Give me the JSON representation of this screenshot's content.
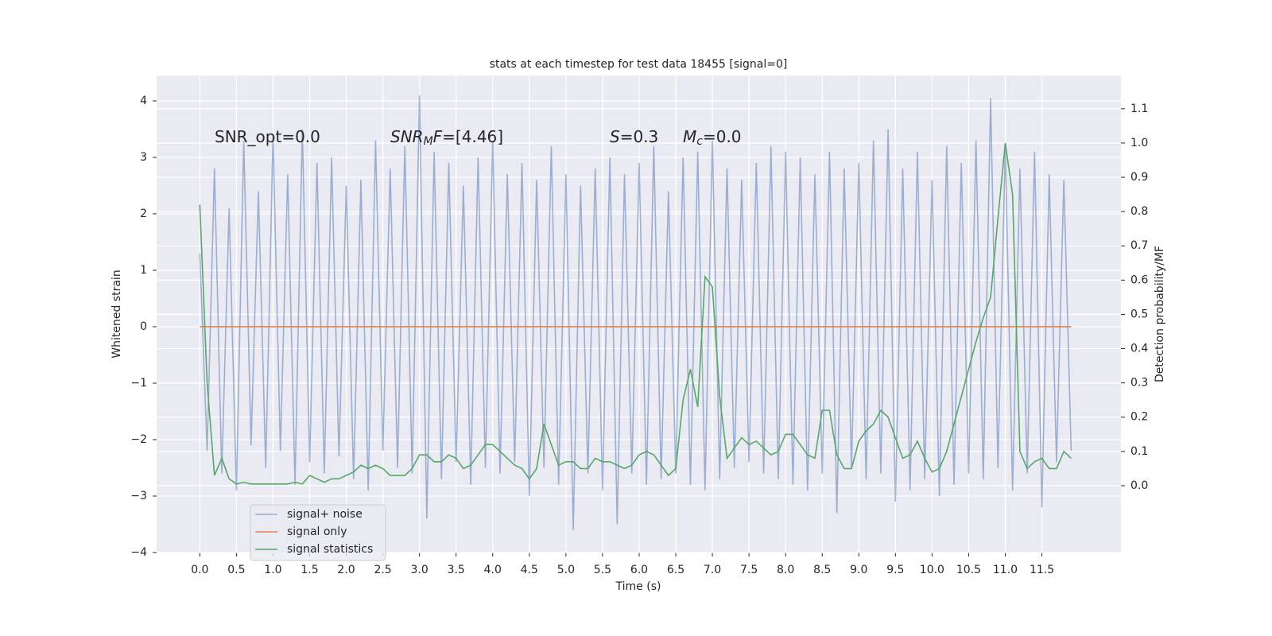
{
  "chart_data": {
    "type": "line",
    "title": "stats at each timestep for test data 18455 [signal=0]",
    "xlabel": "Time (s)",
    "ylabel": "Whitened strain",
    "y2label": "Detection probability/MF",
    "annotations": [
      [
        {
          "text": "SNR_opt=0.0"
        }
      ],
      [
        {
          "text": "SNR",
          "italic": true
        },
        {
          "text": "M",
          "italic": true,
          "sub": true
        },
        {
          "text": "F",
          "italic": true
        },
        {
          "text": "=[4.46]"
        }
      ],
      [
        {
          "text": "S",
          "italic": true
        },
        {
          "text": "=0.3"
        }
      ],
      [
        {
          "text": "M",
          "italic": true
        },
        {
          "text": "c",
          "italic": true,
          "sub": true
        },
        {
          "text": "=0.0"
        }
      ]
    ],
    "x": [
      0,
      0.1,
      0.2,
      0.3,
      0.4,
      0.5,
      0.6,
      0.7,
      0.8,
      0.9,
      1,
      1.1,
      1.2,
      1.3,
      1.4,
      1.5,
      1.6,
      1.7,
      1.8,
      1.9,
      2,
      2.1,
      2.2,
      2.3,
      2.4,
      2.5,
      2.6,
      2.7,
      2.8,
      2.9,
      3,
      3.1,
      3.2,
      3.3,
      3.4,
      3.5,
      3.6,
      3.7,
      3.8,
      3.9,
      4,
      4.1,
      4.2,
      4.3,
      4.4,
      4.5,
      4.6,
      4.7,
      4.8,
      4.9,
      5,
      5.1,
      5.2,
      5.3,
      5.4,
      5.5,
      5.6,
      5.7,
      5.8,
      5.9,
      6,
      6.1,
      6.2,
      6.3,
      6.4,
      6.5,
      6.6,
      6.7,
      6.8,
      6.9,
      7,
      7.1,
      7.2,
      7.3,
      7.4,
      7.5,
      7.6,
      7.7,
      7.8,
      7.9,
      8,
      8.1,
      8.2,
      8.3,
      8.4,
      8.5,
      8.6,
      8.7,
      8.8,
      8.9,
      9,
      9.1,
      9.2,
      9.3,
      9.4,
      9.5,
      9.6,
      9.7,
      9.8,
      9.9,
      10,
      10.1,
      10.2,
      10.3,
      10.4,
      10.5,
      10.6,
      10.7,
      10.8,
      10.9,
      11,
      11.1,
      11.2,
      11.3,
      11.4,
      11.5,
      11.6,
      11.7,
      11.8,
      11.9
    ],
    "series": [
      {
        "name": "signal+ noise",
        "color": "#4c72b0",
        "opacity": 0.5,
        "axis": "y",
        "values": [
          1.3,
          -2.2,
          2.8,
          -2.6,
          2.1,
          -2.9,
          3.3,
          -2.1,
          2.4,
          -2.5,
          3.4,
          -2.2,
          2.7,
          -2.8,
          3.5,
          -2.4,
          2.9,
          -2.6,
          3.0,
          -2.3,
          2.5,
          -2.7,
          2.6,
          -2.9,
          3.3,
          -2.2,
          2.8,
          -2.5,
          3.2,
          -2.6,
          4.1,
          -3.4,
          3.1,
          -2.7,
          2.9,
          -2.4,
          2.5,
          -2.8,
          3.0,
          -2.5,
          3.3,
          -2.6,
          2.7,
          -2.4,
          2.9,
          -3.0,
          2.6,
          -2.5,
          3.2,
          -2.8,
          2.7,
          -3.6,
          2.5,
          -2.6,
          2.8,
          -2.9,
          3.0,
          -3.5,
          2.7,
          -2.6,
          2.9,
          -2.8,
          3.2,
          -2.7,
          2.4,
          -2.6,
          3.0,
          -2.8,
          3.1,
          -2.9,
          3.3,
          -2.7,
          2.8,
          -2.5,
          2.6,
          -2.4,
          2.9,
          -2.6,
          3.2,
          -2.7,
          3.1,
          -2.8,
          3.0,
          -2.9,
          2.7,
          -2.6,
          3.1,
          -3.3,
          2.8,
          -2.5,
          2.9,
          -2.7,
          3.3,
          -2.6,
          3.5,
          -3.1,
          2.8,
          -2.9,
          3.1,
          -2.7,
          2.6,
          -3.0,
          3.2,
          -2.8,
          2.9,
          -2.6,
          3.3,
          -2.7,
          4.05,
          -2.5,
          3.2,
          -2.9,
          2.8,
          -2.6,
          3.1,
          -3.2,
          2.7,
          -2.4,
          2.6,
          -2.2
        ]
      },
      {
        "name": "signal only",
        "color": "#dd8452",
        "opacity": 1,
        "axis": "y",
        "values": [
          0,
          0,
          0,
          0,
          0,
          0,
          0,
          0,
          0,
          0,
          0,
          0,
          0,
          0,
          0,
          0,
          0,
          0,
          0,
          0,
          0,
          0,
          0,
          0,
          0,
          0,
          0,
          0,
          0,
          0,
          0,
          0,
          0,
          0,
          0,
          0,
          0,
          0,
          0,
          0,
          0,
          0,
          0,
          0,
          0,
          0,
          0,
          0,
          0,
          0,
          0,
          0,
          0,
          0,
          0,
          0,
          0,
          0,
          0,
          0,
          0,
          0,
          0,
          0,
          0,
          0,
          0,
          0,
          0,
          0,
          0,
          0,
          0,
          0,
          0,
          0,
          0,
          0,
          0,
          0,
          0,
          0,
          0,
          0,
          0,
          0,
          0,
          0,
          0,
          0,
          0,
          0,
          0,
          0,
          0,
          0,
          0,
          0,
          0,
          0,
          0,
          0,
          0,
          0,
          0,
          0,
          0,
          0,
          0,
          0,
          0,
          0,
          0,
          0,
          0,
          0,
          0,
          0,
          0,
          0
        ]
      },
      {
        "name": "signal statistics",
        "color": "#55a868",
        "opacity": 1,
        "axis": "y2",
        "values": [
          0.82,
          0.3,
          0.03,
          0.08,
          0.02,
          0.005,
          0.01,
          0.005,
          0.005,
          0.005,
          0.005,
          0.005,
          0.005,
          0.01,
          0.005,
          0.03,
          0.02,
          0.01,
          0.02,
          0.02,
          0.03,
          0.04,
          0.06,
          0.05,
          0.06,
          0.05,
          0.03,
          0.03,
          0.03,
          0.05,
          0.09,
          0.09,
          0.07,
          0.07,
          0.09,
          0.08,
          0.05,
          0.06,
          0.09,
          0.12,
          0.12,
          0.1,
          0.08,
          0.06,
          0.05,
          0.02,
          0.05,
          0.18,
          0.12,
          0.06,
          0.07,
          0.07,
          0.05,
          0.05,
          0.08,
          0.07,
          0.07,
          0.06,
          0.05,
          0.06,
          0.09,
          0.1,
          0.09,
          0.06,
          0.03,
          0.05,
          0.25,
          0.34,
          0.23,
          0.61,
          0.58,
          0.26,
          0.08,
          0.11,
          0.14,
          0.12,
          0.13,
          0.11,
          0.09,
          0.1,
          0.15,
          0.15,
          0.12,
          0.09,
          0.08,
          0.22,
          0.22,
          0.09,
          0.05,
          0.05,
          0.13,
          0.16,
          0.18,
          0.22,
          0.2,
          0.14,
          0.08,
          0.09,
          0.13,
          0.08,
          0.04,
          0.05,
          0.1,
          0.18,
          0.26,
          0.34,
          0.42,
          0.49,
          0.55,
          0.78,
          1.0,
          0.85,
          0.1,
          0.05,
          0.07,
          0.08,
          0.05,
          0.05,
          0.1,
          0.08
        ]
      }
    ],
    "xlim": [
      -0.59,
      12.58
    ],
    "xticks": [
      {
        "value": 0,
        "label": "0.0"
      },
      {
        "value": 0.5,
        "label": "0.5"
      },
      {
        "value": 1,
        "label": "1.0"
      },
      {
        "value": 1.5,
        "label": "1.5"
      },
      {
        "value": 2,
        "label": "2.0"
      },
      {
        "value": 2.5,
        "label": "2.5"
      },
      {
        "value": 3,
        "label": "3.0"
      },
      {
        "value": 3.5,
        "label": "3.5"
      },
      {
        "value": 4,
        "label": "4.0"
      },
      {
        "value": 4.5,
        "label": "4.5"
      },
      {
        "value": 5,
        "label": "5.0"
      },
      {
        "value": 5.5,
        "label": "5.5"
      },
      {
        "value": 6,
        "label": "6.0"
      },
      {
        "value": 6.5,
        "label": "6.5"
      },
      {
        "value": 7,
        "label": "7.0"
      },
      {
        "value": 7.5,
        "label": "7.5"
      },
      {
        "value": 8,
        "label": "8.0"
      },
      {
        "value": 8.5,
        "label": "8.5"
      },
      {
        "value": 9,
        "label": "9.0"
      },
      {
        "value": 9.5,
        "label": "9.5"
      },
      {
        "value": 10,
        "label": "10.0"
      },
      {
        "value": 10.5,
        "label": "10.5"
      },
      {
        "value": 11,
        "label": "11.0"
      },
      {
        "value": 11.5,
        "label": "11.5"
      }
    ],
    "ylim": [
      -4.0,
      4.45
    ],
    "yticks": [
      {
        "value": -4,
        "label": "−4"
      },
      {
        "value": -3,
        "label": "−3"
      },
      {
        "value": -2,
        "label": "−2"
      },
      {
        "value": -1,
        "label": "−1"
      },
      0,
      1,
      2,
      3,
      4
    ],
    "y2lim": [
      -0.195,
      1.197
    ],
    "y2ticks": [
      {
        "value": 0,
        "label": "0.0"
      },
      {
        "value": 0.1,
        "label": "0.1"
      },
      {
        "value": 0.2,
        "label": "0.2"
      },
      {
        "value": 0.3,
        "label": "0.3"
      },
      {
        "value": 0.4,
        "label": "0.4"
      },
      {
        "value": 0.5,
        "label": "0.5"
      },
      {
        "value": 0.6,
        "label": "0.6"
      },
      {
        "value": 0.7,
        "label": "0.7"
      },
      {
        "value": 0.8,
        "label": "0.8"
      },
      {
        "value": 0.9,
        "label": "0.9"
      },
      {
        "value": 1,
        "label": "1.0"
      },
      {
        "value": 1.1,
        "label": "1.1"
      }
    ],
    "grid": true,
    "legend": "lower left"
  }
}
